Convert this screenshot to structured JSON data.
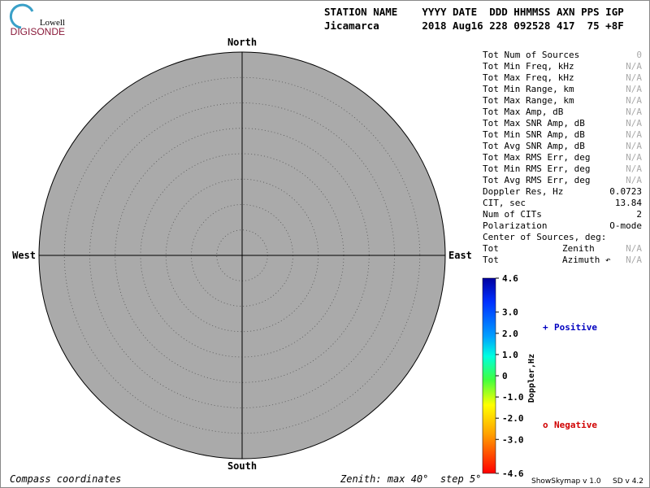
{
  "logo": {
    "top": "Lowell",
    "bottom": "DIGISONDE"
  },
  "header": {
    "line1": "STATION NAME    YYYY DATE  DDD HHMMSS AXN PPS IGP",
    "line2": "Jicamarca       2018 Aug16 228 092528 417  75 +8F"
  },
  "compass": {
    "north": "North",
    "south": "South",
    "east": "East",
    "west": "West"
  },
  "stats": [
    {
      "label": "Tot Num of Sources",
      "value": "0"
    },
    {
      "label": "Tot Min Freq, kHz",
      "value": "N/A"
    },
    {
      "label": "Tot Max Freq, kHz",
      "value": "N/A"
    },
    {
      "label": "Tot Min Range, km",
      "value": "N/A"
    },
    {
      "label": "Tot Max Range, km",
      "value": "N/A"
    },
    {
      "label": "Tot Max Amp, dB",
      "value": "N/A"
    },
    {
      "label": "Tot Max SNR Amp, dB",
      "value": "N/A"
    },
    {
      "label": "Tot Min SNR Amp, dB",
      "value": "N/A"
    },
    {
      "label": "Tot Avg SNR Amp, dB",
      "value": "N/A"
    },
    {
      "label": "Tot Max RMS Err, deg",
      "value": "N/A"
    },
    {
      "label": "Tot Min RMS Err, deg",
      "value": "N/A"
    },
    {
      "label": "Tot Avg RMS Err, deg",
      "value": "N/A"
    },
    {
      "label": "Doppler Res, Hz",
      "value": "0.0723"
    },
    {
      "label": "CIT, sec",
      "value": "13.84"
    },
    {
      "label": "Num of CITs",
      "value": "2"
    },
    {
      "label": "Polarization",
      "value": "O-mode"
    },
    {
      "label": "Center of Sources, deg:"
    },
    {
      "label": "Tot",
      "sub": "Zenith",
      "value": "N/A"
    },
    {
      "label": "Tot",
      "sub": "Azimuth ↶",
      "value": "N/A"
    }
  ],
  "colorbar": {
    "title": "Doppler,Hz",
    "ticks": [
      {
        "value": 4.6,
        "label": "4.6"
      },
      {
        "value": 3,
        "label": "3.0"
      },
      {
        "value": 2,
        "label": "2.0"
      },
      {
        "value": 1,
        "label": "1.0"
      },
      0,
      {
        "value": -1,
        "label": "-1.0"
      },
      {
        "value": -2,
        "label": "-2.0"
      },
      {
        "value": -3,
        "label": "-3.0"
      },
      {
        "value": -4.6,
        "label": "-4.6"
      }
    ]
  },
  "legend": {
    "positive_symbol": "+",
    "positive": "Positive",
    "negative_symbol": "o",
    "negative": "Negative"
  },
  "footer": {
    "left": "Compass coordinates",
    "center": "Zenith: max 40°  step 5°",
    "version1": "ShowSkymap v 1.0",
    "version2": "SD v 4.2"
  }
}
